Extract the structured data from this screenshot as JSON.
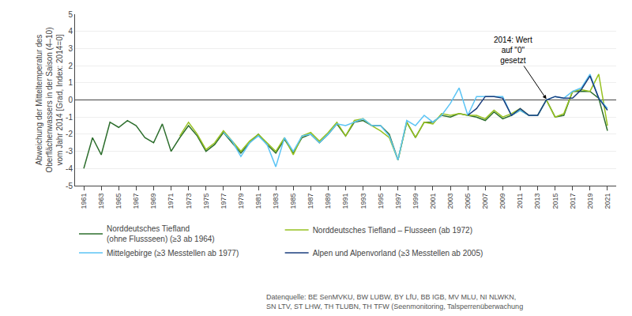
{
  "chart_data": {
    "type": "line",
    "ylabel": "Abweichung der Mitteltemperatur des\nOberflächenwassers in der Saison (4–10)\nvom Jahr 2014 [Grad, Index: 2014=0]",
    "xlim": [
      1960,
      2022
    ],
    "xticks": [
      1961,
      1963,
      1965,
      1967,
      1969,
      1971,
      1973,
      1975,
      1977,
      1979,
      1981,
      1983,
      1985,
      1987,
      1989,
      1991,
      1993,
      1995,
      1997,
      1999,
      2001,
      2003,
      2005,
      2007,
      2009,
      2011,
      2013,
      2015,
      2017,
      2019,
      2021
    ],
    "ylim": [
      -5,
      5
    ],
    "yticks": [
      -5,
      -4,
      -3,
      -2,
      -1,
      0,
      1,
      2,
      3,
      4,
      5
    ],
    "grid": true,
    "annotations": [
      {
        "text": "2014: Wert\nauf \"0\"\ngesetzt",
        "x": 2014,
        "y": 0.05
      }
    ],
    "source": "Datenquelle: BE SenMVKU, BW LUBW, BY LfU, BB IGB, MV MLU, NI NLWKN,\nSN LTV, ST LHW, TH TLUBN, TH TFW (Seenmonitoring, Talsperrenüberwachung",
    "series": [
      {
        "name": "Norddeutsches Tiefland\n(ohne Flussseen) (≥3 ab 1964)",
        "color": "#2D6E2D",
        "x": [
          1961,
          1962,
          1963,
          1964,
          1965,
          1966,
          1967,
          1968,
          1969,
          1970,
          1971,
          1972,
          1973,
          1974,
          1975,
          1976,
          1977,
          1978,
          1979,
          1980,
          1981,
          1982,
          1983,
          1984,
          1985,
          1986,
          1987,
          1988,
          1989,
          1990,
          1991,
          1992,
          1993,
          1994,
          1995,
          1996,
          1997,
          1998,
          1999,
          2000,
          2001,
          2002,
          2003,
          2004,
          2005,
          2006,
          2007,
          2008,
          2009,
          2010,
          2011,
          2012,
          2013,
          2014,
          2015,
          2016,
          2017,
          2018,
          2019,
          2020,
          2021
        ],
        "values": [
          -4.0,
          -2.2,
          -3.2,
          -1.3,
          -1.6,
          -1.2,
          -1.5,
          -2.2,
          -2.5,
          -1.4,
          -3.0,
          -2.2,
          -1.5,
          -2.1,
          -3.0,
          -2.6,
          -1.9,
          -2.5,
          -3.1,
          -2.5,
          -2.0,
          -2.6,
          -3.1,
          -2.3,
          -3.1,
          -2.2,
          -2.0,
          -2.5,
          -2.0,
          -1.4,
          -2.1,
          -1.3,
          -1.2,
          -1.5,
          -1.5,
          -2.0,
          -3.5,
          -1.3,
          -2.2,
          -1.3,
          -1.3,
          -0.9,
          -1.0,
          -0.8,
          -0.9,
          -1.0,
          -1.2,
          -0.7,
          -1.1,
          -0.9,
          -0.6,
          -0.9,
          -0.9,
          0.0,
          -1.0,
          -0.9,
          0.5,
          0.5,
          0.5,
          0.1,
          -1.8
        ]
      },
      {
        "name": "Norddeutsches Tiefland – Flusseen (ab 1972)",
        "color": "#96C11F",
        "x": [
          1972,
          1973,
          1974,
          1975,
          1976,
          1977,
          1978,
          1979,
          1980,
          1981,
          1982,
          1983,
          1984,
          1985,
          1986,
          1987,
          1988,
          1989,
          1990,
          1991,
          1992,
          1993,
          1994,
          1995,
          1996,
          1997,
          1998,
          1999,
          2000,
          2001,
          2002,
          2003,
          2004,
          2005,
          2006,
          2007,
          2008,
          2009,
          2010,
          2011,
          2012,
          2013,
          2014,
          2015,
          2016,
          2017,
          2018,
          2019,
          2020,
          2021
        ],
        "values": [
          -2.1,
          -1.3,
          -2.0,
          -2.9,
          -2.5,
          -1.8,
          -2.4,
          -3.0,
          -2.4,
          -2.0,
          -2.5,
          -3.0,
          -2.2,
          -3.2,
          -2.1,
          -1.9,
          -2.4,
          -1.9,
          -1.3,
          -2.1,
          -1.2,
          -1.1,
          -1.5,
          -1.8,
          -2.2,
          -3.5,
          -1.3,
          -2.2,
          -1.3,
          -1.4,
          -0.8,
          -0.9,
          -0.8,
          -0.9,
          -0.9,
          -1.1,
          -0.6,
          -1.0,
          -0.8,
          -0.5,
          -0.9,
          -0.9,
          0.0,
          -1.0,
          -0.8,
          0.5,
          0.6,
          0.5,
          1.5,
          -1.5
        ]
      },
      {
        "name": "Mittelgebirge (≥3 Messtellen ab 1977)",
        "color": "#5BC4F5",
        "x": [
          1977,
          1978,
          1979,
          1980,
          1981,
          1982,
          1983,
          1984,
          1985,
          1986,
          1987,
          1988,
          1989,
          1990,
          1991,
          1992,
          1993,
          1994,
          1995,
          1996,
          1997,
          1998,
          1999,
          2000,
          2001,
          2002,
          2003,
          2004,
          2005,
          2006,
          2007,
          2008,
          2009,
          2010,
          2011,
          2012,
          2013,
          2014,
          2015,
          2016,
          2017,
          2018,
          2019,
          2020,
          2021
        ],
        "values": [
          -1.9,
          -2.4,
          -3.3,
          -2.5,
          -2.1,
          -2.6,
          -3.9,
          -2.2,
          -3.0,
          -2.1,
          -2.0,
          -2.5,
          -2.0,
          -1.4,
          -1.5,
          -1.3,
          -1.1,
          -1.5,
          -1.5,
          -2.1,
          -3.5,
          -1.2,
          -1.5,
          -0.9,
          -1.3,
          -0.9,
          -0.2,
          0.7,
          -0.9,
          0.2,
          0.2,
          0.2,
          0.2,
          -0.9,
          -0.6,
          -0.9,
          -0.9,
          0.0,
          0.2,
          0.1,
          0.5,
          0.7,
          1.5,
          0.1,
          -0.5
        ]
      },
      {
        "name": "Alpen und Alpenvorland (≥3 Messtellen ab 2005)",
        "color": "#1A3D7C",
        "x": [
          2005,
          2006,
          2007,
          2008,
          2009,
          2010,
          2011,
          2012,
          2013,
          2014,
          2015,
          2016,
          2017,
          2018,
          2019,
          2020,
          2021
        ],
        "values": [
          -0.9,
          -0.5,
          0.2,
          0.2,
          0.1,
          -0.9,
          -0.5,
          -0.9,
          -0.9,
          0.0,
          0.2,
          0.1,
          0.1,
          0.6,
          1.4,
          0.1,
          -0.6
        ]
      }
    ]
  }
}
